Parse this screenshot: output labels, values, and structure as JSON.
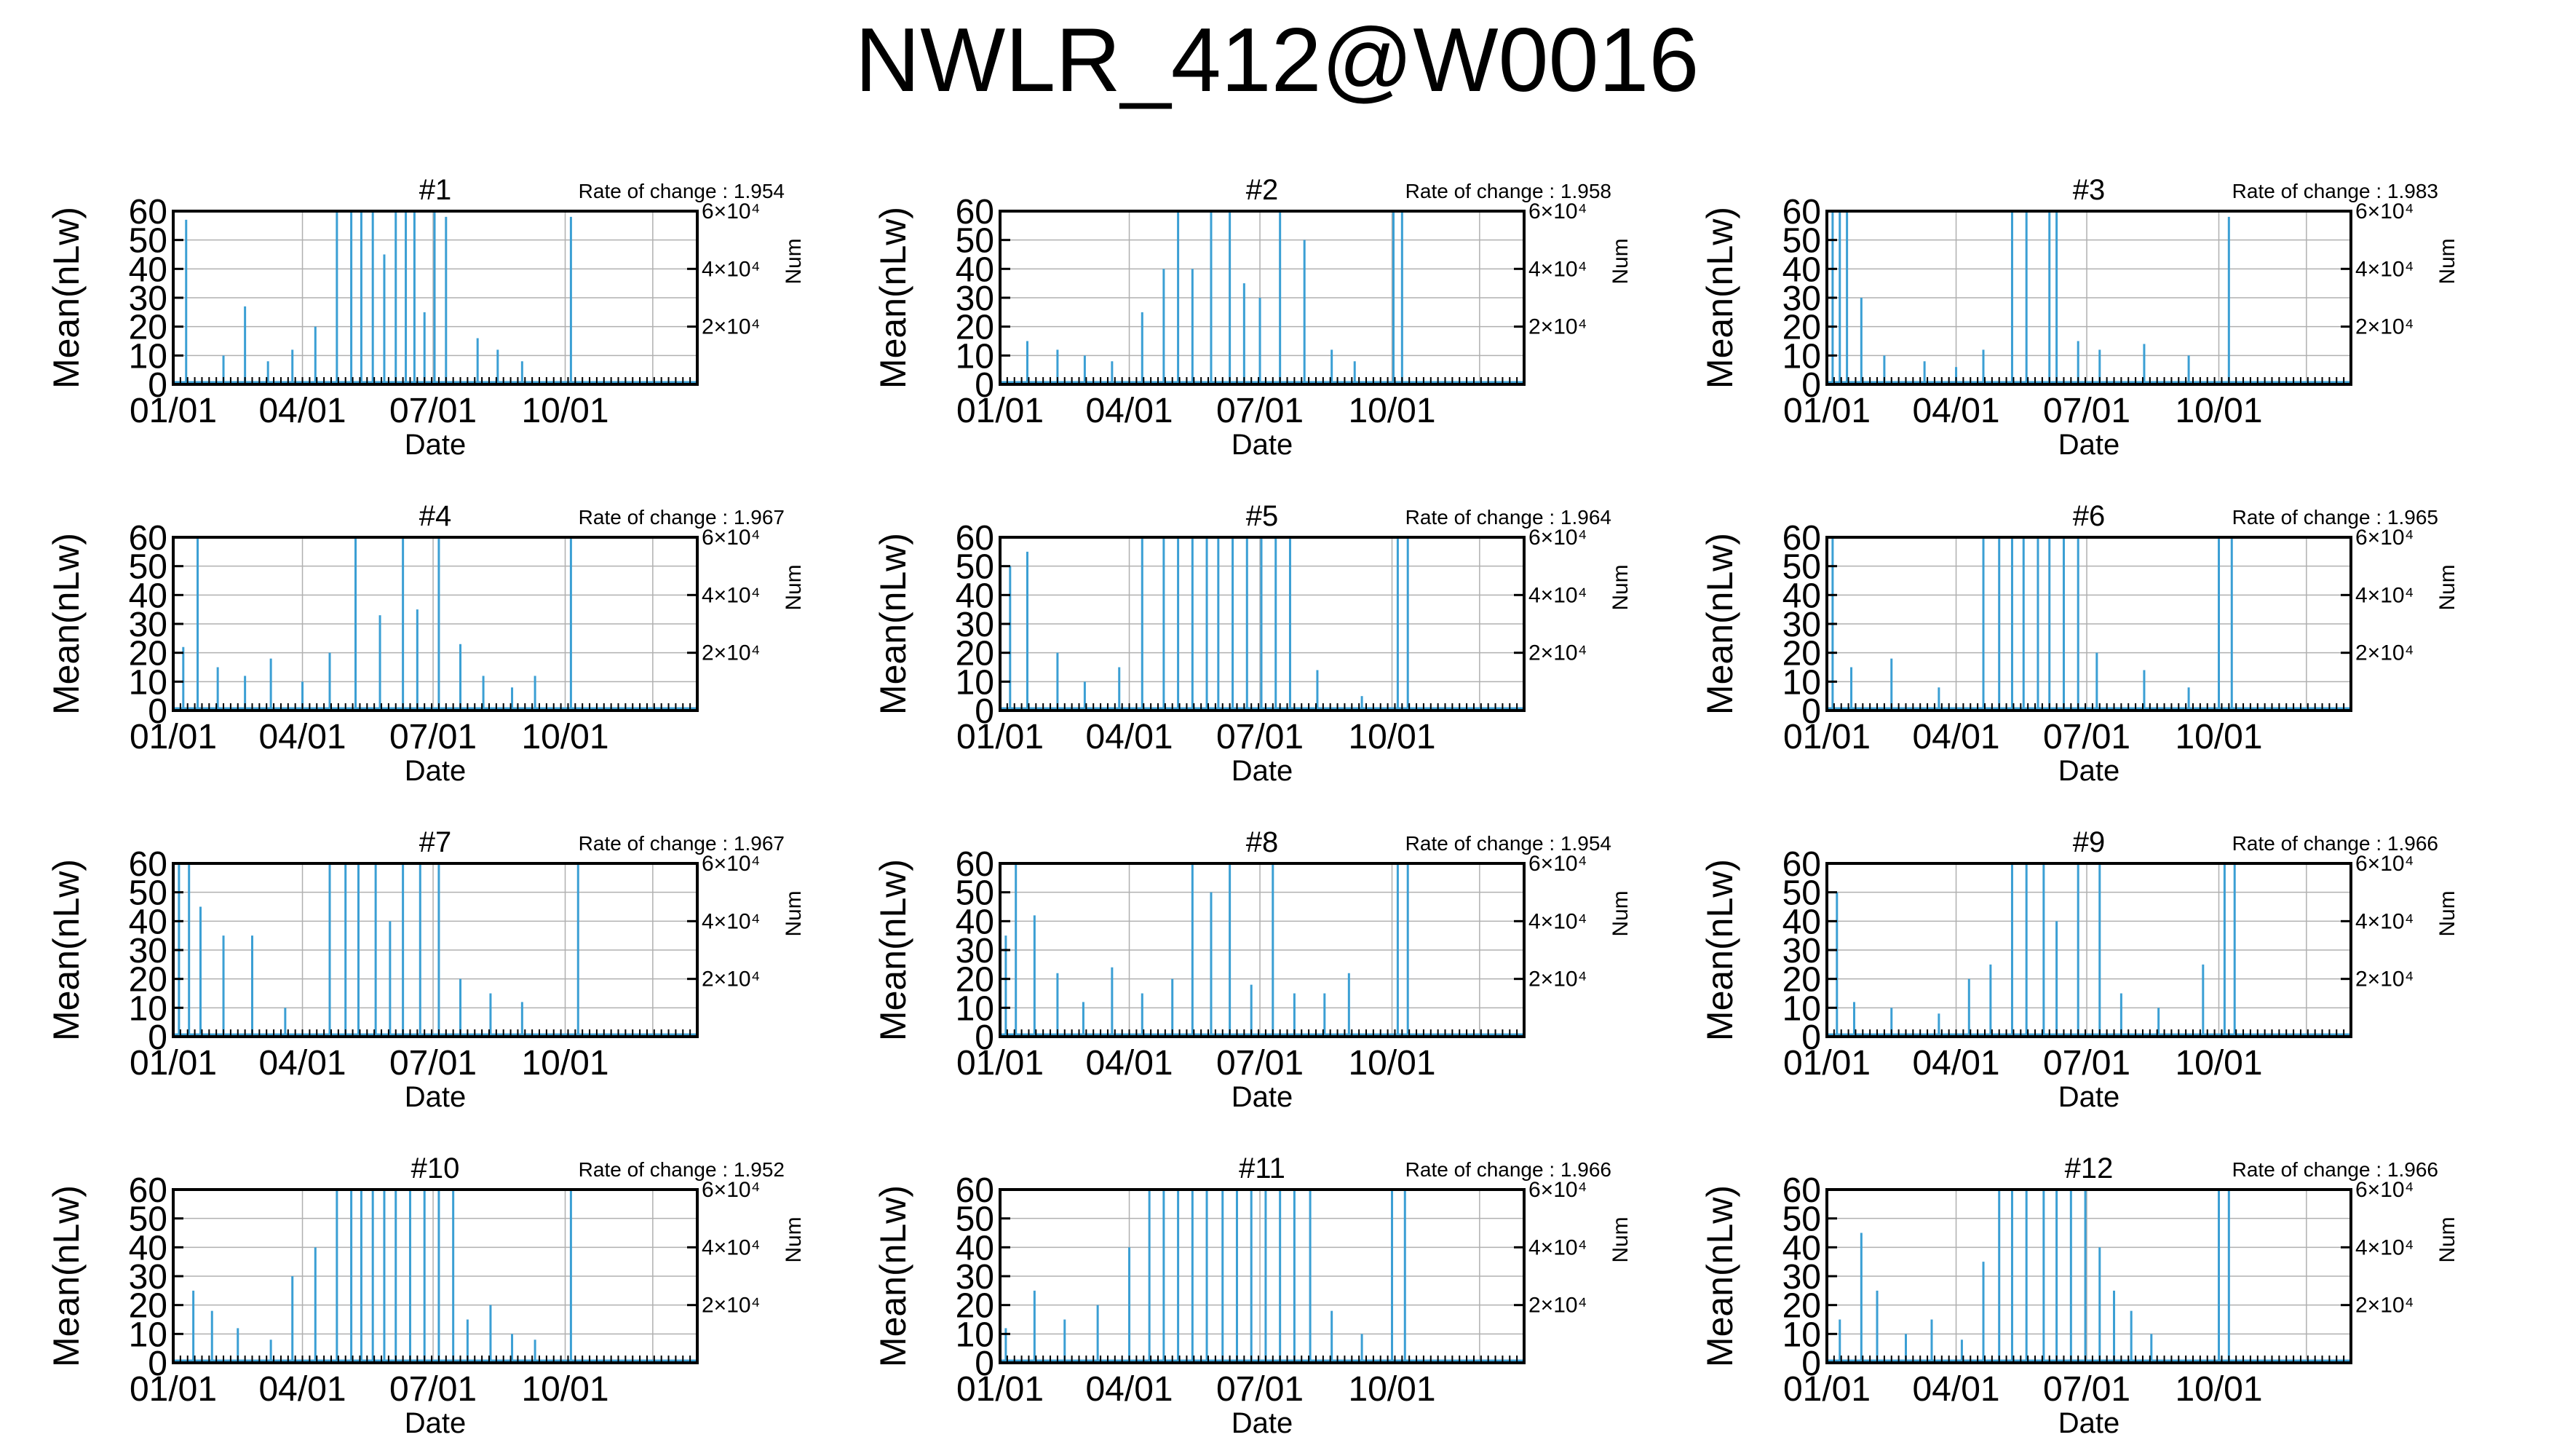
{
  "title": "NWLR_412@W0016",
  "panel_common": {
    "ylabel": "Mean(nLw)",
    "xlabel": "Date",
    "y2label": "Num",
    "rate_prefix": "Rate of change : ",
    "yticks": [
      "0",
      "10",
      "20",
      "30",
      "40",
      "50",
      "60"
    ],
    "y2ticks": [
      {
        "label": "2×10⁴",
        "value": 20000
      },
      {
        "label": "4×10⁴",
        "value": 40000
      },
      {
        "label": "6×10⁴",
        "value": 60000
      }
    ],
    "xticks": [
      "01/01",
      "04/01",
      "07/01",
      "10/01"
    ],
    "series_color": "#3b9fd4",
    "grid_color": "#b0b0b0"
  },
  "chart_data": [
    {
      "type": "bar",
      "title": "#1",
      "rate": "1.954",
      "xlabel": "Date",
      "ylabel": "Mean(nLw)",
      "y2label": "Num",
      "ylim": [
        0,
        60
      ],
      "y2lim": [
        0,
        60000
      ],
      "x": [
        "01/10",
        "02/05",
        "02/20",
        "03/08",
        "03/25",
        "04/10",
        "04/25",
        "05/05",
        "05/12",
        "05/20",
        "05/28",
        "06/05",
        "06/12",
        "06/18",
        "06/25",
        "07/02",
        "07/10",
        "08/01",
        "08/15",
        "09/01",
        "10/05"
      ],
      "values": [
        57,
        10,
        27,
        8,
        12,
        20,
        60,
        60,
        60,
        60,
        45,
        60,
        60,
        60,
        25,
        60,
        58,
        16,
        12,
        8,
        58
      ]
    },
    {
      "type": "bar",
      "title": "#2",
      "rate": "1.958",
      "xlabel": "Date",
      "ylabel": "Mean(nLw)",
      "y2label": "Num",
      "ylim": [
        0,
        60
      ],
      "y2lim": [
        0,
        60000
      ],
      "x": [
        "01/20",
        "02/10",
        "03/01",
        "03/20",
        "04/10",
        "04/25",
        "05/05",
        "05/15",
        "05/28",
        "06/10",
        "06/20",
        "07/01",
        "07/15",
        "08/01",
        "08/20",
        "09/05",
        "10/02",
        "10/08"
      ],
      "values": [
        15,
        12,
        10,
        8,
        25,
        40,
        60,
        40,
        60,
        60,
        35,
        30,
        60,
        50,
        12,
        8,
        60,
        60
      ]
    },
    {
      "type": "bar",
      "title": "#3",
      "rate": "1.983",
      "xlabel": "Date",
      "ylabel": "Mean(nLw)",
      "y2label": "Num",
      "ylim": [
        0,
        60
      ],
      "y2lim": [
        0,
        60000
      ],
      "x": [
        "01/05",
        "01/10",
        "01/15",
        "01/25",
        "02/10",
        "03/10",
        "04/01",
        "04/20",
        "05/10",
        "05/20",
        "06/05",
        "06/10",
        "06/25",
        "07/10",
        "08/10",
        "09/10",
        "10/08"
      ],
      "values": [
        60,
        60,
        60,
        30,
        10,
        8,
        6,
        12,
        60,
        60,
        60,
        60,
        15,
        12,
        14,
        10,
        58
      ]
    },
    {
      "type": "bar",
      "title": "#4",
      "rate": "1.967",
      "xlabel": "Date",
      "ylabel": "Mean(nLw)",
      "y2label": "Num",
      "ylim": [
        0,
        60
      ],
      "y2lim": [
        0,
        60000
      ],
      "x": [
        "01/08",
        "01/18",
        "02/01",
        "02/20",
        "03/10",
        "04/01",
        "04/20",
        "05/08",
        "05/25",
        "06/10",
        "06/20",
        "07/05",
        "07/20",
        "08/05",
        "08/25",
        "09/10",
        "10/05"
      ],
      "values": [
        22,
        60,
        15,
        12,
        18,
        10,
        20,
        60,
        33,
        60,
        35,
        60,
        23,
        12,
        8,
        12,
        60
      ]
    },
    {
      "type": "bar",
      "title": "#5",
      "rate": "1.964",
      "xlabel": "Date",
      "ylabel": "Mean(nLw)",
      "y2label": "Num",
      "ylim": [
        0,
        60
      ],
      "y2lim": [
        0,
        60000
      ],
      "x": [
        "01/08",
        "01/20",
        "02/10",
        "03/01",
        "03/25",
        "04/10",
        "04/25",
        "05/05",
        "05/15",
        "05/25",
        "06/02",
        "06/12",
        "06/22",
        "07/02",
        "07/12",
        "07/22",
        "08/10",
        "09/10",
        "10/05",
        "10/12"
      ],
      "values": [
        50,
        55,
        20,
        10,
        15,
        60,
        60,
        60,
        60,
        60,
        60,
        60,
        60,
        60,
        60,
        60,
        14,
        5,
        60,
        60
      ]
    },
    {
      "type": "bar",
      "title": "#6",
      "rate": "1.965",
      "xlabel": "Date",
      "ylabel": "Mean(nLw)",
      "y2label": "Num",
      "ylim": [
        0,
        60
      ],
      "y2lim": [
        0,
        60000
      ],
      "x": [
        "01/05",
        "01/18",
        "02/15",
        "03/20",
        "04/20",
        "05/01",
        "05/10",
        "05/18",
        "05/28",
        "06/05",
        "06/15",
        "06/25",
        "07/08",
        "08/10",
        "09/10",
        "10/01",
        "10/10"
      ],
      "values": [
        60,
        15,
        18,
        8,
        60,
        60,
        60,
        60,
        60,
        60,
        60,
        60,
        20,
        14,
        8,
        60,
        60
      ]
    },
    {
      "type": "bar",
      "title": "#7",
      "rate": "1.967",
      "xlabel": "Date",
      "ylabel": "Mean(nLw)",
      "y2label": "Num",
      "ylim": [
        0,
        60
      ],
      "y2lim": [
        0,
        60000
      ],
      "x": [
        "01/05",
        "01/12",
        "01/20",
        "02/05",
        "02/25",
        "03/20",
        "04/20",
        "05/01",
        "05/10",
        "05/22",
        "06/01",
        "06/10",
        "06/22",
        "07/05",
        "07/20",
        "08/10",
        "09/01",
        "10/10"
      ],
      "values": [
        60,
        60,
        45,
        35,
        35,
        10,
        60,
        60,
        60,
        60,
        40,
        60,
        60,
        60,
        20,
        15,
        12,
        60
      ]
    },
    {
      "type": "bar",
      "title": "#8",
      "rate": "1.954",
      "xlabel": "Date",
      "ylabel": "Mean(nLw)",
      "y2label": "Num",
      "ylim": [
        0,
        60
      ],
      "y2lim": [
        0,
        60000
      ],
      "x": [
        "01/05",
        "01/12",
        "01/25",
        "02/10",
        "02/28",
        "03/20",
        "04/10",
        "05/01",
        "05/15",
        "05/28",
        "06/10",
        "06/25",
        "07/10",
        "07/25",
        "08/15",
        "09/01",
        "10/05",
        "10/12"
      ],
      "values": [
        35,
        60,
        42,
        22,
        12,
        24,
        15,
        20,
        60,
        50,
        60,
        18,
        60,
        15,
        15,
        22,
        60,
        60
      ]
    },
    {
      "type": "bar",
      "title": "#9",
      "rate": "1.966",
      "xlabel": "Date",
      "ylabel": "Mean(nLw)",
      "y2label": "Num",
      "ylim": [
        0,
        60
      ],
      "y2lim": [
        0,
        60000
      ],
      "x": [
        "01/08",
        "01/20",
        "02/15",
        "03/20",
        "04/10",
        "04/25",
        "05/10",
        "05/20",
        "06/01",
        "06/10",
        "06/25",
        "07/10",
        "07/25",
        "08/20",
        "09/20",
        "10/05",
        "10/12"
      ],
      "values": [
        50,
        12,
        10,
        8,
        20,
        25,
        60,
        60,
        60,
        40,
        60,
        60,
        15,
        10,
        25,
        60,
        60
      ]
    },
    {
      "type": "bar",
      "title": "#10",
      "rate": "1.952",
      "xlabel": "Date",
      "ylabel": "Mean(nLw)",
      "y2label": "Num",
      "ylim": [
        0,
        60
      ],
      "y2lim": [
        0,
        60000
      ],
      "x": [
        "01/15",
        "01/28",
        "02/15",
        "03/10",
        "03/25",
        "04/10",
        "04/25",
        "05/05",
        "05/12",
        "05/20",
        "05/28",
        "06/05",
        "06/15",
        "06/25",
        "07/05",
        "07/15",
        "07/25",
        "08/10",
        "08/25",
        "09/10",
        "10/05"
      ],
      "values": [
        25,
        18,
        12,
        8,
        30,
        40,
        60,
        60,
        60,
        60,
        60,
        60,
        60,
        60,
        60,
        60,
        15,
        20,
        10,
        8,
        60
      ]
    },
    {
      "type": "bar",
      "title": "#11",
      "rate": "1.966",
      "xlabel": "Date",
      "ylabel": "Mean(nLw)",
      "y2label": "Num",
      "ylim": [
        0,
        60
      ],
      "y2lim": [
        0,
        60000
      ],
      "x": [
        "01/05",
        "01/25",
        "02/15",
        "03/10",
        "04/01",
        "04/15",
        "04/25",
        "05/05",
        "05/15",
        "05/25",
        "06/05",
        "06/15",
        "06/25",
        "07/05",
        "07/15",
        "07/25",
        "08/05",
        "08/20",
        "09/10",
        "10/01",
        "10/10"
      ],
      "values": [
        12,
        25,
        15,
        20,
        40,
        60,
        60,
        60,
        60,
        60,
        60,
        60,
        60,
        60,
        60,
        60,
        60,
        18,
        10,
        60,
        60
      ]
    },
    {
      "type": "bar",
      "title": "#12",
      "rate": "1.966",
      "xlabel": "Date",
      "ylabel": "Mean(nLw)",
      "y2label": "Num",
      "ylim": [
        0,
        60
      ],
      "y2lim": [
        0,
        60000
      ],
      "x": [
        "01/10",
        "01/25",
        "02/05",
        "02/25",
        "03/15",
        "04/05",
        "04/20",
        "05/01",
        "05/10",
        "05/20",
        "06/01",
        "06/10",
        "06/20",
        "06/30",
        "07/10",
        "07/20",
        "08/01",
        "08/15",
        "10/01",
        "10/08"
      ],
      "values": [
        15,
        45,
        25,
        10,
        15,
        8,
        35,
        60,
        60,
        60,
        60,
        60,
        60,
        60,
        40,
        25,
        18,
        10,
        60,
        60
      ]
    }
  ]
}
